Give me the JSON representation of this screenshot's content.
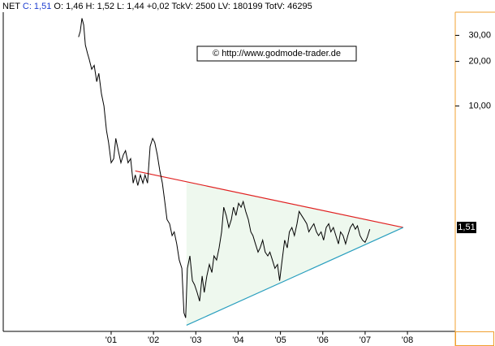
{
  "header": {
    "symbol": "NET",
    "close": "C: 1,51",
    "details": "O: 1,46  H: 1,52  L: 1,44  +0,02  TckV: 2500  LV: 180199  TotV: 46295"
  },
  "watermark": "© http://www.godmode-trader.de",
  "chart_data": {
    "type": "line",
    "log_scale": true,
    "xlim": [
      1998.47,
      2009.11
    ],
    "xticks": [
      {
        "value": 2001,
        "label": "'01"
      },
      {
        "value": 2002,
        "label": "'02"
      },
      {
        "value": 2003,
        "label": "'03"
      },
      {
        "value": 2004,
        "label": "'04"
      },
      {
        "value": 2005,
        "label": "'05"
      },
      {
        "value": 2006,
        "label": "'06"
      },
      {
        "value": 2007,
        "label": "'07"
      },
      {
        "value": 2008,
        "label": "'08"
      }
    ],
    "ylim": [
      0.3,
      43
    ],
    "yticks": [
      {
        "value": 30,
        "label": "30,00"
      },
      {
        "value": 20,
        "label": "20,00"
      },
      {
        "value": 10,
        "label": "10,00"
      }
    ],
    "last_price": {
      "value": 1.51,
      "label": "1,51"
    },
    "series": [
      {
        "color": "#000000",
        "x": [
          2000.23,
          2000.27,
          2000.31,
          2000.35,
          2000.39,
          2000.44,
          2000.48,
          2000.54,
          2000.6,
          2000.66,
          2000.71,
          2000.77,
          2000.83,
          2000.89,
          2000.94,
          2001.0,
          2001.06,
          2001.11,
          2001.17,
          2001.23,
          2001.29,
          2001.34,
          2001.4,
          2001.46,
          2001.52,
          2001.57,
          2001.63,
          2001.69,
          2001.75,
          2001.8,
          2001.86,
          2001.92,
          2001.98,
          2002.03,
          2002.09,
          2002.15,
          2002.21,
          2002.26,
          2002.32,
          2002.38,
          2002.44,
          2002.49,
          2002.55,
          2002.61,
          2002.67,
          2002.72,
          2002.76,
          2002.8,
          2002.86,
          2002.92,
          2002.97,
          2003.03,
          2003.09,
          2003.15,
          2003.2,
          2003.26,
          2003.32,
          2003.38,
          2003.43,
          2003.49,
          2003.55,
          2003.61,
          2003.66,
          2003.72,
          2003.78,
          2003.84,
          2003.89,
          2003.95,
          2004.01,
          2004.07,
          2004.12,
          2004.18,
          2004.24,
          2004.3,
          2004.35,
          2004.41,
          2004.47,
          2004.52,
          2004.58,
          2004.64,
          2004.7,
          2004.75,
          2004.81,
          2004.87,
          2004.93,
          2004.98,
          2005.04,
          2005.1,
          2005.16,
          2005.21,
          2005.27,
          2005.33,
          2005.39,
          2005.44,
          2005.5,
          2005.56,
          2005.62,
          2005.67,
          2005.73,
          2005.79,
          2005.85,
          2005.9,
          2005.96,
          2006.02,
          2006.08,
          2006.14,
          2006.19,
          2006.25,
          2006.31,
          2006.37,
          2006.42,
          2006.48,
          2006.54,
          2006.59,
          2006.65,
          2006.71,
          2006.77,
          2006.82,
          2006.88,
          2006.94,
          2007.0,
          2007.05,
          2007.11
        ],
        "values": [
          29.2,
          31.9,
          39.1,
          35.3,
          25.8,
          22.7,
          20.8,
          17.7,
          18.8,
          14.6,
          16.6,
          12.1,
          10,
          6.85,
          5.67,
          4.13,
          4.4,
          6.04,
          4.99,
          4.13,
          4.69,
          4.99,
          4.13,
          4.4,
          3.01,
          3.42,
          2.9,
          3.42,
          3.01,
          3.42,
          3.01,
          5.32,
          6.04,
          5.67,
          4.69,
          3.64,
          3.01,
          2.34,
          1.71,
          1.6,
          1.33,
          1.41,
          1.17,
          0.91,
          0.8,
          0.4,
          0.37,
          0.8,
          0.97,
          0.66,
          0.62,
          0.55,
          0.48,
          0.71,
          0.55,
          0.71,
          0.85,
          0.75,
          0.97,
          0.91,
          1.1,
          1.41,
          2.07,
          1.82,
          1.51,
          1.71,
          2.07,
          1.82,
          2.2,
          2.07,
          2.26,
          1.94,
          1.71,
          1.41,
          1.33,
          1.17,
          1.03,
          1.1,
          1.24,
          1.03,
          0.97,
          1.03,
          0.91,
          0.8,
          0.85,
          0.66,
          0.91,
          1.24,
          1.1,
          1.41,
          1.51,
          1.33,
          1.6,
          1.94,
          1.82,
          1.71,
          1.6,
          1.41,
          1.51,
          1.6,
          1.41,
          1.33,
          1.41,
          1.24,
          1.51,
          1.6,
          1.41,
          1.51,
          1.33,
          1.17,
          1.41,
          1.33,
          1.17,
          1.33,
          1.51,
          1.6,
          1.47,
          1.55,
          1.33,
          1.24,
          1.2,
          1.29,
          1.47
        ]
      }
    ],
    "trendlines": [
      {
        "color": "#e02020",
        "x": [
          2001.57,
          2007.9
        ],
        "values": [
          3.64,
          1.51
        ]
      },
      {
        "color": "#2a9fbf",
        "x": [
          2002.78,
          2007.9
        ],
        "values": [
          0.33,
          1.51
        ]
      }
    ],
    "triangle_fill": "#eef8ee"
  }
}
